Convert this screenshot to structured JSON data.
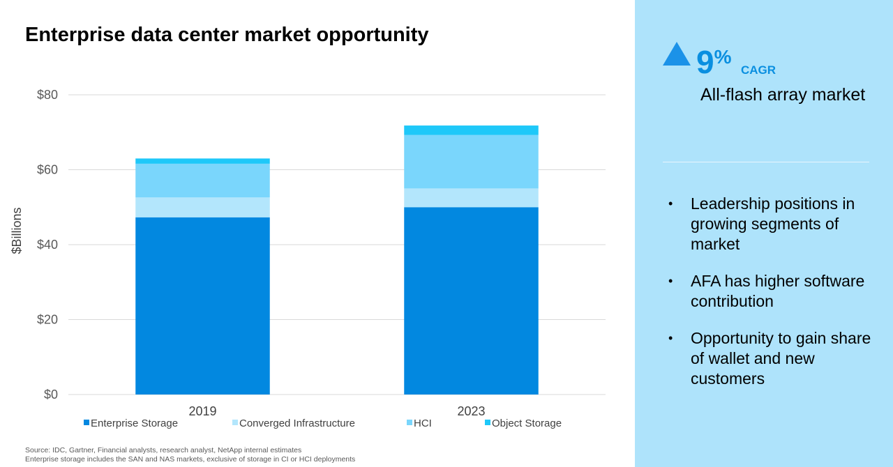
{
  "slide": {
    "title": "Enterprise data center market opportunity",
    "source_lines": [
      "Source: IDC, Gartner, Financial analysts, research analyst, NetApp internal estimates",
      "Enterprise storage includes the SAN and NAS markets, exclusive of storage in CI or HCI deployments"
    ]
  },
  "chart_data": {
    "type": "bar",
    "stacked": true,
    "categories": [
      "2019",
      "2023"
    ],
    "series": [
      {
        "name": "Enterprise Storage",
        "color": "#0288e0",
        "values": [
          47.3,
          50.0
        ]
      },
      {
        "name": "Converged Infrastructure",
        "color": "#b3e6fc",
        "values": [
          5.3,
          5.0
        ]
      },
      {
        "name": "HCI",
        "color": "#7ad6fc",
        "values": [
          9.0,
          14.3
        ]
      },
      {
        "name": "Object Storage",
        "color": "#1ec8f9",
        "values": [
          1.4,
          2.5
        ]
      }
    ],
    "ylabel": "$Billions",
    "ylim": [
      0,
      80
    ],
    "yticks": [
      0,
      20,
      40,
      60,
      80
    ],
    "ytick_labels": [
      "$0",
      "$20",
      "$40",
      "$60",
      "$80"
    ],
    "grid": true,
    "legend": "bottom"
  },
  "panel": {
    "kpi_value": "9",
    "kpi_pct": "%",
    "kpi_unit": "CAGR",
    "kpi_desc": "All-flash array market",
    "bullets": [
      "Leadership positions in growing segments of market",
      "AFA has higher software contribution",
      "Opportunity to gain share of wallet and new customers"
    ],
    "background": "#aee3fb",
    "accent": "#0a8fe0"
  }
}
